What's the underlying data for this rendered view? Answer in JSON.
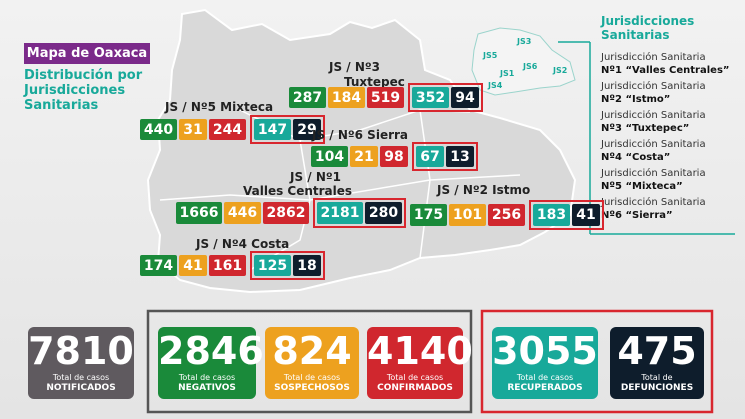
{
  "title": "Mapa de Oaxaca",
  "subtitle": [
    "Distribución por",
    "Jurisdicciones",
    "Sanitarias"
  ],
  "legend": {
    "title": [
      "Jurisdicciones",
      "Sanitarias"
    ],
    "items": [
      [
        "Jurisdicción Sanitaria",
        "Nº1 “Valles Centrales”"
      ],
      [
        "Jurisdicción Sanitaria",
        "Nº2 “Istmo”"
      ],
      [
        "Jurisdicción Sanitaria",
        "Nº3 “Tuxtepec”"
      ],
      [
        "Jurisdicción Sanitaria",
        "Nº4 “Costa”"
      ],
      [
        "Jurisdicción Sanitaria",
        "Nº5 “Mixteca”"
      ],
      [
        "Jurisdicción Sanitaria",
        "Nº6 “Sierra”"
      ]
    ],
    "map_labels": [
      "JS3",
      "JS5",
      "JS6",
      "JS1",
      "JS2",
      "JS4"
    ]
  },
  "jurisdictions": [
    {
      "label": [
        "JS / Nº3",
        "Tuxtepec"
      ],
      "values": [
        287,
        184,
        519,
        352,
        94
      ]
    },
    {
      "label": [
        "JS / Nº5 Mixteca"
      ],
      "values": [
        440,
        31,
        244,
        147,
        29
      ]
    },
    {
      "label": [
        "JS / Nº6 Sierra"
      ],
      "values": [
        104,
        21,
        98,
        67,
        13
      ]
    },
    {
      "label": [
        "JS / Nº1",
        "Valles Centrales"
      ],
      "values": [
        1666,
        446,
        2862,
        2181,
        280
      ]
    },
    {
      "label": [
        "JS / Nº2 Istmo"
      ],
      "values": [
        175,
        101,
        256,
        183,
        41
      ]
    },
    {
      "label": [
        "JS / Nº4 Costa"
      ],
      "values": [
        174,
        41,
        161,
        125,
        18
      ]
    }
  ],
  "totals": [
    {
      "value": 7810,
      "label": [
        "Total de casos",
        "NOTIFICADOS"
      ]
    },
    {
      "value": 2846,
      "label": [
        "Total de casos",
        "NEGATIVOS"
      ]
    },
    {
      "value": 824,
      "label": [
        "Total de casos",
        "SOSPECHOSOS"
      ]
    },
    {
      "value": 4140,
      "label": [
        "Total de casos",
        "CONFIRMADOS"
      ]
    },
    {
      "value": 3055,
      "label": [
        "Total de casos",
        "RECUPERADOS"
      ]
    },
    {
      "value": 475,
      "label": [
        "Total de",
        "DEFUNCIONES"
      ]
    }
  ]
}
